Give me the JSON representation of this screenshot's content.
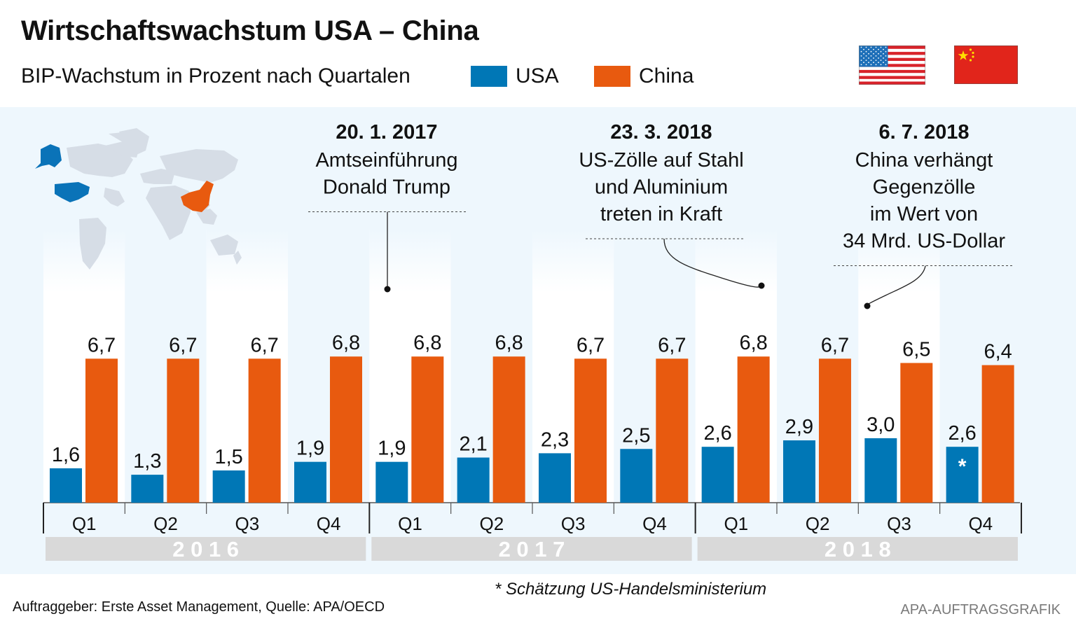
{
  "header": {
    "title": "Wirtschaftswachstum USA – China",
    "subtitle": "BIP-Wachstum in Prozent nach Quartalen"
  },
  "legend": [
    {
      "name": "USA",
      "color": "#0077b6"
    },
    {
      "name": "China",
      "color": "#e85a0f"
    }
  ],
  "flags": [
    "usa-flag",
    "china-flag"
  ],
  "chart_data": {
    "type": "bar",
    "title": "Wirtschaftswachstum USA – China",
    "subtitle": "BIP-Wachstum in Prozent nach Quartalen",
    "xlabel": "",
    "ylabel": "",
    "ylim": [
      0,
      7
    ],
    "grid": false,
    "legend_position": "top",
    "categories": [
      "Q1",
      "Q2",
      "Q3",
      "Q4",
      "Q1",
      "Q2",
      "Q3",
      "Q4",
      "Q1",
      "Q2",
      "Q3",
      "Q4"
    ],
    "years": [
      {
        "label": "2 0 1 6",
        "span": [
          0,
          3
        ]
      },
      {
        "label": "2 0 1 7",
        "span": [
          4,
          7
        ]
      },
      {
        "label": "2 0 1 8",
        "span": [
          8,
          11
        ]
      }
    ],
    "series": [
      {
        "name": "USA",
        "color": "#0077b6",
        "values": [
          1.6,
          1.3,
          1.5,
          1.9,
          1.9,
          2.1,
          2.3,
          2.5,
          2.6,
          2.9,
          3.0,
          2.6
        ],
        "labels": [
          "1,6",
          "1,3",
          "1,5",
          "1,9",
          "1,9",
          "2,1",
          "2,3",
          "2,5",
          "2,6",
          "2,9",
          "3,0",
          "2,6"
        ],
        "estimated_index": 11,
        "estimated_marker": "*"
      },
      {
        "name": "China",
        "color": "#e85a0f",
        "values": [
          6.7,
          6.7,
          6.7,
          6.8,
          6.8,
          6.8,
          6.7,
          6.7,
          6.8,
          6.7,
          6.5,
          6.4
        ],
        "labels": [
          "6,7",
          "6,7",
          "6,7",
          "6,8",
          "6,8",
          "6,8",
          "6,7",
          "6,7",
          "6,8",
          "6,7",
          "6,5",
          "6,4"
        ]
      }
    ],
    "annotations": [
      {
        "date": "20. 1. 2017",
        "lines": [
          "Amtseinführung",
          "Donald Trump"
        ],
        "quarter_index": 4,
        "connector": "straight"
      },
      {
        "date": "23. 3. 2018",
        "lines": [
          "US-Zölle auf Stahl",
          "und Aluminium",
          "treten in Kraft"
        ],
        "quarter_index": 8,
        "connector": "curve"
      },
      {
        "date": "6. 7. 2018",
        "lines": [
          "China verhängt",
          "Gegenzölle",
          "im Wert von",
          "34 Mrd. US-Dollar"
        ],
        "quarter_index": 10,
        "connector": "curve"
      }
    ]
  },
  "footer": {
    "footnote": "* Schätzung US-Handelsministerium",
    "source": "Auftraggeber: Erste Asset Management, Quelle: APA/OECD",
    "credit": "APA-AUFTRAGSGRAFIK"
  }
}
